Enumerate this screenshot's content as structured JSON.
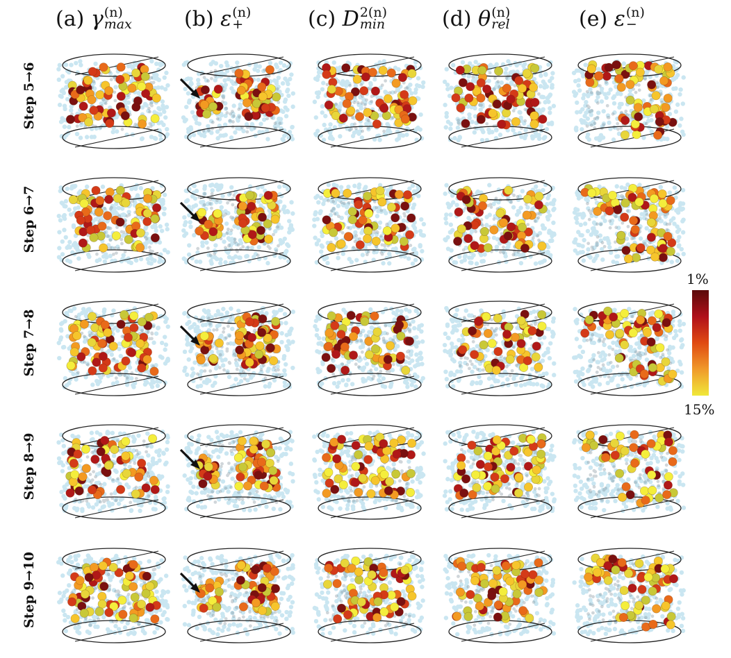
{
  "columns": [
    {
      "tag": "(a)",
      "symbol": "γ",
      "sup": "(n)",
      "sub": "max"
    },
    {
      "tag": "(b)",
      "symbol": "ε",
      "sup": "(n)",
      "sub": "+"
    },
    {
      "tag": "(c)",
      "symbol": "D",
      "sup": "2(n)",
      "sub": "min"
    },
    {
      "tag": "(d)",
      "symbol": "θ",
      "sup": "(n)",
      "sub": "rel"
    },
    {
      "tag": "(e)",
      "symbol": "ε",
      "sup": "(n)",
      "sub": "−"
    }
  ],
  "rows": [
    "Step 5→6",
    "Step 6→7",
    "Step 7→8",
    "Step 8→9",
    "Step 9→10"
  ],
  "colorbar": {
    "top_label": "1%",
    "bottom_label": "15%",
    "colors_top_to_bottom": [
      "#5a0a0a",
      "#b0101a",
      "#e04a12",
      "#f09a2a",
      "#f0e83a"
    ]
  },
  "particle_colors": [
    "#f4ee3c",
    "#e8d63a",
    "#f6c52c",
    "#f39a22",
    "#e86a1a",
    "#d43a18",
    "#b01818",
    "#7a1010",
    "#c8c838"
  ],
  "background_particle_color": "#9fd3e6",
  "arrow_column": 1
}
